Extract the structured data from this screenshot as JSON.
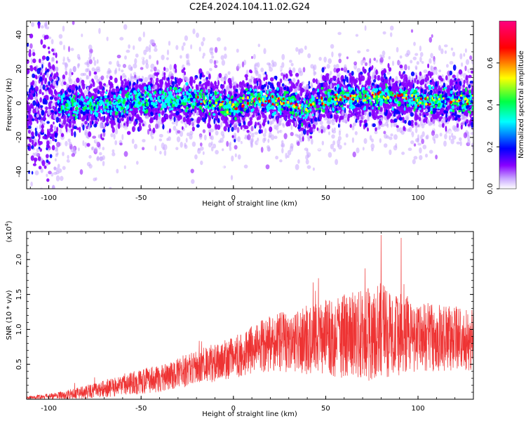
{
  "title": "C2E4.2024.104.11.02.G24",
  "chart_data": [
    {
      "type": "heatmap",
      "xlabel": "Height of straight line (km)",
      "ylabel": "Frequency (Hz)",
      "xlim": [
        -112,
        130
      ],
      "ylim": [
        -50,
        48
      ],
      "xticks": [
        -100,
        -50,
        0,
        50,
        100
      ],
      "yticks": [
        -40,
        -20,
        0,
        20,
        40
      ],
      "colorbar": {
        "label": "Normalized spectral amplitude",
        "range": [
          0,
          0.8
        ],
        "ticks": [
          "0.0",
          "0.2",
          "0.4",
          "0.6"
        ],
        "colormap": "rainbow",
        "colors": [
          "#ffffff",
          "#8800ff",
          "#0000ff",
          "#00ffff",
          "#00ff44",
          "#ffff00",
          "#ff0000",
          "#ff0080"
        ]
      },
      "ridge": [
        {
          "x": -110,
          "y": 0
        },
        {
          "x": -80,
          "y": -1
        },
        {
          "x": -60,
          "y": 0
        },
        {
          "x": -30,
          "y": 3
        },
        {
          "x": -15,
          "y": 1
        },
        {
          "x": 0,
          "y": -2
        },
        {
          "x": 10,
          "y": 2
        },
        {
          "x": 25,
          "y": 1
        },
        {
          "x": 33,
          "y": 0
        },
        {
          "x": 38,
          "y": -6
        },
        {
          "x": 45,
          "y": 1
        },
        {
          "x": 60,
          "y": 3
        },
        {
          "x": 80,
          "y": 4
        },
        {
          "x": 100,
          "y": 2
        },
        {
          "x": 115,
          "y": 1
        },
        {
          "x": 130,
          "y": 2
        }
      ],
      "grid": false
    },
    {
      "type": "line",
      "xlabel": "Height of straight line (km)",
      "ylabel": "SNR (10 * v/v)",
      "scale_note": "(x10",
      "scale_exp": "4",
      "scale_close": ")",
      "xlim": [
        -112,
        130
      ],
      "ylim": [
        0,
        2.4
      ],
      "xticks": [
        -100,
        -50,
        0,
        50,
        100
      ],
      "yticks": [
        0.5,
        1.0,
        1.5,
        2.0
      ],
      "ytick_labels": [
        "0.5",
        "1.0",
        "1.5",
        "2.0"
      ],
      "color": "#ee3333",
      "envelope": [
        {
          "x": -112,
          "mean": 0.02,
          "amp": 0.02
        },
        {
          "x": -95,
          "mean": 0.05,
          "amp": 0.05
        },
        {
          "x": -80,
          "mean": 0.1,
          "amp": 0.1
        },
        {
          "x": -60,
          "mean": 0.2,
          "amp": 0.15
        },
        {
          "x": -40,
          "mean": 0.3,
          "amp": 0.2
        },
        {
          "x": -20,
          "mean": 0.45,
          "amp": 0.25
        },
        {
          "x": 0,
          "mean": 0.6,
          "amp": 0.3
        },
        {
          "x": 20,
          "mean": 0.8,
          "amp": 0.4
        },
        {
          "x": 40,
          "mean": 0.85,
          "amp": 0.5
        },
        {
          "x": 60,
          "mean": 0.9,
          "amp": 0.6
        },
        {
          "x": 80,
          "mean": 0.95,
          "amp": 0.7
        },
        {
          "x": 100,
          "mean": 0.9,
          "amp": 0.5
        },
        {
          "x": 130,
          "mean": 0.85,
          "amp": 0.45
        }
      ],
      "peak": {
        "x": 80,
        "y": 2.35
      },
      "grid": false
    }
  ]
}
